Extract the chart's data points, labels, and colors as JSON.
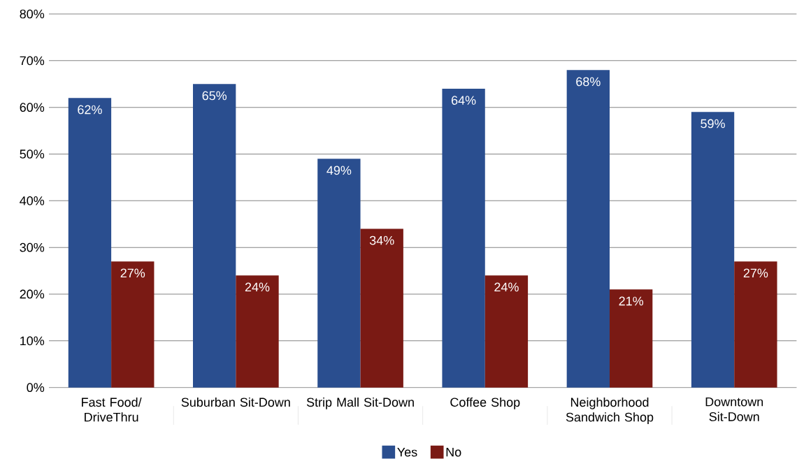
{
  "chart_data": {
    "type": "bar",
    "categories": [
      "Fast Food/ DriveThru",
      "Suburban Sit-Down",
      "Strip Mall Sit-Down",
      "Coffee Shop",
      "Neighborhood Sandwich Shop",
      "Downtown Sit-Down"
    ],
    "series": [
      {
        "name": "Yes",
        "color": "#2a4e8f",
        "values": [
          62,
          65,
          49,
          64,
          68,
          59
        ],
        "value_labels": [
          "62%",
          "65%",
          "49%",
          "64%",
          "68%",
          "59%"
        ]
      },
      {
        "name": "No",
        "color": "#7a1a14",
        "values": [
          27,
          24,
          34,
          24,
          21,
          27
        ],
        "value_labels": [
          "27%",
          "24%",
          "34%",
          "24%",
          "21%",
          "27%"
        ]
      }
    ],
    "ylim": [
      0,
      80
    ],
    "yticks": [
      {
        "value": 0,
        "label": "0%"
      },
      {
        "value": 10,
        "label": "10%"
      },
      {
        "value": 20,
        "label": "20%"
      },
      {
        "value": 30,
        "label": "30%"
      },
      {
        "value": 40,
        "label": "40%"
      },
      {
        "value": 50,
        "label": "50%"
      },
      {
        "value": 60,
        "label": "60%"
      },
      {
        "value": 70,
        "label": "70%"
      },
      {
        "value": 80,
        "label": "80%"
      }
    ],
    "grid": "y",
    "legend": "bottom"
  }
}
